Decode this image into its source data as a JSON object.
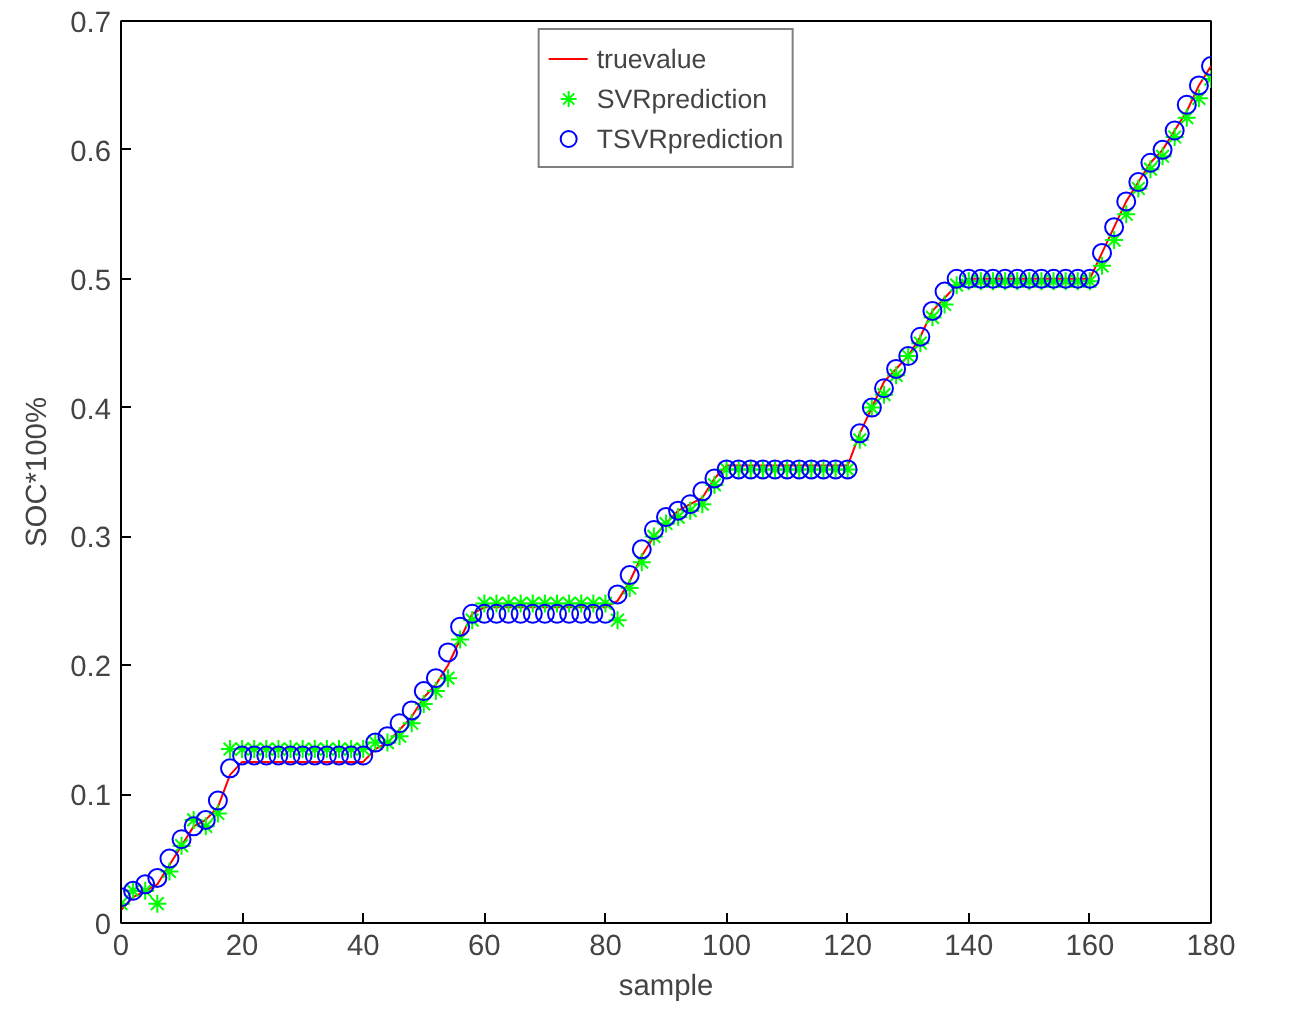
{
  "chart_data": {
    "type": "scatter",
    "xlabel": "sample",
    "ylabel": "SOC*100%",
    "x": [
      0,
      2,
      4,
      6,
      8,
      10,
      12,
      14,
      16,
      18,
      20,
      22,
      24,
      26,
      28,
      30,
      32,
      34,
      36,
      38,
      40,
      42,
      44,
      46,
      48,
      50,
      52,
      54,
      56,
      58,
      60,
      62,
      64,
      66,
      68,
      70,
      72,
      74,
      76,
      78,
      80,
      82,
      84,
      86,
      88,
      90,
      92,
      94,
      96,
      98,
      100,
      102,
      104,
      106,
      108,
      110,
      112,
      114,
      116,
      118,
      120,
      122,
      124,
      126,
      128,
      130,
      132,
      134,
      136,
      138,
      140,
      142,
      144,
      146,
      148,
      150,
      152,
      154,
      156,
      158,
      160,
      162,
      164,
      166,
      168,
      170,
      172,
      174,
      176,
      178,
      180
    ],
    "series": [
      {
        "name": "truevalue",
        "type": "line",
        "color": "#ff0000",
        "line_style": "solid",
        "values": [
          0.01,
          0.02,
          0.025,
          0.03,
          0.045,
          0.06,
          0.075,
          0.08,
          0.09,
          0.115,
          0.125,
          0.125,
          0.125,
          0.125,
          0.125,
          0.125,
          0.125,
          0.125,
          0.125,
          0.125,
          0.125,
          0.135,
          0.14,
          0.15,
          0.16,
          0.175,
          0.185,
          0.2,
          0.22,
          0.24,
          0.245,
          0.245,
          0.245,
          0.245,
          0.245,
          0.245,
          0.245,
          0.245,
          0.245,
          0.245,
          0.245,
          0.25,
          0.265,
          0.285,
          0.3,
          0.31,
          0.32,
          0.325,
          0.33,
          0.345,
          0.355,
          0.355,
          0.355,
          0.355,
          0.355,
          0.355,
          0.355,
          0.355,
          0.355,
          0.355,
          0.355,
          0.38,
          0.4,
          0.42,
          0.43,
          0.44,
          0.455,
          0.475,
          0.485,
          0.495,
          0.5,
          0.5,
          0.5,
          0.5,
          0.5,
          0.5,
          0.5,
          0.5,
          0.5,
          0.5,
          0.5,
          0.52,
          0.54,
          0.56,
          0.575,
          0.59,
          0.6,
          0.615,
          0.63,
          0.65,
          0.665
        ]
      },
      {
        "name": "SVRprediction",
        "marker": "cross",
        "color": "#00ff00",
        "values": [
          0.015,
          0.025,
          0.025,
          0.015,
          0.04,
          0.06,
          0.08,
          0.075,
          0.085,
          0.135,
          0.135,
          0.135,
          0.135,
          0.135,
          0.135,
          0.135,
          0.135,
          0.135,
          0.135,
          0.135,
          0.135,
          0.14,
          0.14,
          0.145,
          0.155,
          0.17,
          0.18,
          0.19,
          0.22,
          0.235,
          0.248,
          0.248,
          0.248,
          0.248,
          0.248,
          0.248,
          0.248,
          0.248,
          0.248,
          0.248,
          0.248,
          0.235,
          0.26,
          0.28,
          0.3,
          0.31,
          0.315,
          0.32,
          0.325,
          0.34,
          0.352,
          0.352,
          0.352,
          0.352,
          0.352,
          0.352,
          0.352,
          0.352,
          0.352,
          0.352,
          0.352,
          0.375,
          0.4,
          0.41,
          0.425,
          0.44,
          0.45,
          0.47,
          0.48,
          0.495,
          0.498,
          0.498,
          0.498,
          0.498,
          0.498,
          0.498,
          0.498,
          0.498,
          0.498,
          0.498,
          0.498,
          0.51,
          0.53,
          0.55,
          0.57,
          0.585,
          0.595,
          0.61,
          0.625,
          0.64,
          0.655
        ]
      },
      {
        "name": "TSVRprediction",
        "marker": "circle",
        "color": "#0000ff",
        "values": [
          0.02,
          0.025,
          0.03,
          0.035,
          0.05,
          0.065,
          0.075,
          0.08,
          0.095,
          0.12,
          0.13,
          0.13,
          0.13,
          0.13,
          0.13,
          0.13,
          0.13,
          0.13,
          0.13,
          0.13,
          0.13,
          0.14,
          0.145,
          0.155,
          0.165,
          0.18,
          0.19,
          0.21,
          0.23,
          0.24,
          0.24,
          0.24,
          0.24,
          0.24,
          0.24,
          0.24,
          0.24,
          0.24,
          0.24,
          0.24,
          0.24,
          0.255,
          0.27,
          0.29,
          0.305,
          0.315,
          0.32,
          0.325,
          0.335,
          0.345,
          0.352,
          0.352,
          0.352,
          0.352,
          0.352,
          0.352,
          0.352,
          0.352,
          0.352,
          0.352,
          0.352,
          0.38,
          0.4,
          0.415,
          0.43,
          0.44,
          0.455,
          0.475,
          0.49,
          0.5,
          0.5,
          0.5,
          0.5,
          0.5,
          0.5,
          0.5,
          0.5,
          0.5,
          0.5,
          0.5,
          0.5,
          0.52,
          0.54,
          0.56,
          0.575,
          0.59,
          0.6,
          0.615,
          0.635,
          0.65,
          0.665
        ]
      }
    ],
    "xlim": [
      0,
      180
    ],
    "ylim": [
      0,
      0.7
    ],
    "xticks": [
      0,
      20,
      40,
      60,
      80,
      100,
      120,
      140,
      160,
      180
    ],
    "yticks": [
      0,
      0.1,
      0.2,
      0.3,
      0.4,
      0.5,
      0.6,
      0.7
    ],
    "grid": false,
    "legend": "top"
  }
}
